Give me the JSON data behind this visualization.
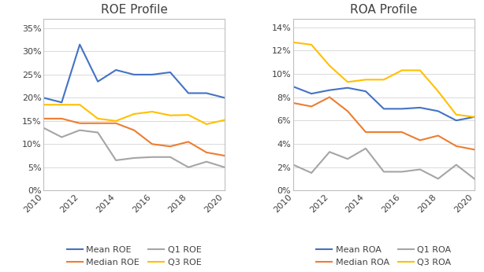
{
  "years": [
    2010,
    2011,
    2012,
    2013,
    2014,
    2015,
    2016,
    2017,
    2018,
    2019,
    2020
  ],
  "roe": {
    "mean": [
      0.2,
      0.19,
      0.315,
      0.235,
      0.26,
      0.25,
      0.25,
      0.255,
      0.21,
      0.21,
      0.2
    ],
    "median": [
      0.155,
      0.155,
      0.145,
      0.145,
      0.145,
      0.13,
      0.1,
      0.095,
      0.105,
      0.082,
      0.075
    ],
    "q1": [
      0.135,
      0.115,
      0.13,
      0.125,
      0.065,
      0.07,
      0.072,
      0.072,
      0.05,
      0.062,
      0.05
    ],
    "q3": [
      0.185,
      0.185,
      0.185,
      0.155,
      0.15,
      0.165,
      0.17,
      0.162,
      0.163,
      0.143,
      0.152
    ]
  },
  "roa": {
    "mean": [
      0.089,
      0.083,
      0.086,
      0.088,
      0.085,
      0.07,
      0.07,
      0.071,
      0.068,
      0.06,
      0.063
    ],
    "median": [
      0.075,
      0.072,
      0.08,
      0.068,
      0.05,
      0.05,
      0.05,
      0.043,
      0.047,
      0.038,
      0.035
    ],
    "q1": [
      0.022,
      0.015,
      0.033,
      0.027,
      0.036,
      0.016,
      0.016,
      0.018,
      0.01,
      0.022,
      0.01
    ],
    "q3": [
      0.127,
      0.125,
      0.107,
      0.093,
      0.095,
      0.095,
      0.103,
      0.103,
      0.085,
      0.065,
      0.063
    ]
  },
  "colors": {
    "mean": "#4472c4",
    "median": "#ed7d31",
    "q1": "#a5a5a5",
    "q3": "#ffc000"
  },
  "roe_ylim": [
    0,
    0.37
  ],
  "roa_ylim": [
    0,
    0.147
  ],
  "roe_yticks": [
    0,
    0.05,
    0.1,
    0.15,
    0.2,
    0.25,
    0.3,
    0.35
  ],
  "roa_yticks": [
    0,
    0.02,
    0.04,
    0.06,
    0.08,
    0.1,
    0.12,
    0.14
  ],
  "title_roe": "ROE Profile",
  "title_roa": "ROA Profile",
  "legend_entries_left": [
    "Mean ROE",
    "Median ROE",
    "Q1 ROE",
    "Q3 ROE"
  ],
  "legend_entries_right": [
    "Mean ROA",
    "Median ROA",
    "Q1 ROA",
    "Q3 ROA"
  ],
  "linewidth": 1.5,
  "title_fontsize": 11,
  "tick_fontsize": 8,
  "legend_fontsize": 8,
  "grid_color": "#d9d9d9",
  "spine_color": "#c0c0c0",
  "border_color": "#bfbfbf"
}
